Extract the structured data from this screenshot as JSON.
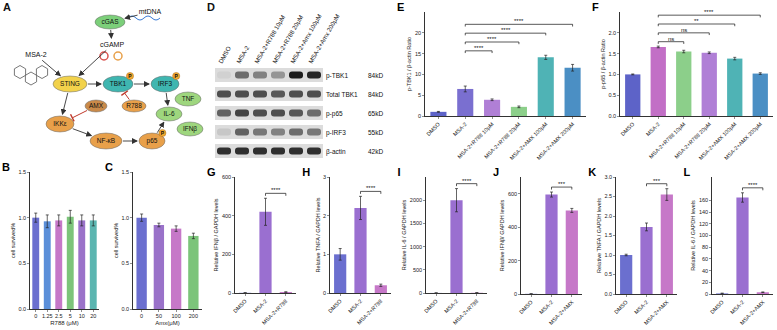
{
  "chart_data": [
    {
      "panel": "B",
      "type": "bar",
      "categories": [
        "0",
        "1.25",
        "2.5",
        "5",
        "10",
        "20"
      ],
      "values": [
        1.0,
        0.96,
        0.97,
        1.01,
        0.97,
        0.97
      ],
      "errors": [
        0.05,
        0.07,
        0.06,
        0.07,
        0.06,
        0.06
      ],
      "colors": [
        "#6b6fcf",
        "#5b8fd9",
        "#c678c8",
        "#7cc47a",
        "#9a72c9",
        "#5bb5b0"
      ],
      "xlabel": "R788 (μM)",
      "ylabel": "cell survived%",
      "ylim": [
        0,
        1.5
      ],
      "yticks": [
        {
          "value": 0,
          "label": "0.0"
        },
        {
          "value": 0.5,
          "label": "0.5"
        },
        {
          "value": 1,
          "label": "1.0"
        },
        {
          "value": 1.5,
          "label": "1.5"
        }
      ],
      "grid": false
    },
    {
      "panel": "C",
      "type": "bar",
      "categories": [
        "0",
        "50",
        "100",
        "200"
      ],
      "values": [
        1.0,
        0.92,
        0.88,
        0.8
      ],
      "errors": [
        0.04,
        0.02,
        0.03,
        0.03
      ],
      "colors": [
        "#6b6fcf",
        "#9a72c9",
        "#c678c8",
        "#7cc47a"
      ],
      "xlabel": "Amx(μM)",
      "ylabel": "cell survived%",
      "ylim": [
        0,
        1.5
      ],
      "yticks": [
        {
          "value": 0,
          "label": "0.0"
        },
        {
          "value": 0.5,
          "label": "0.5"
        },
        {
          "value": 1,
          "label": "1.0"
        },
        {
          "value": 1.5,
          "label": "1.5"
        }
      ],
      "grid": false
    },
    {
      "panel": "E",
      "type": "bar",
      "categories": [
        "DMSO",
        "MSA-2",
        "MSA-2+R788 10μM",
        "MSA-2+R788 20μM",
        "MSA-2+AMX 100μM",
        "MSA-2+AMX 200μM"
      ],
      "values": [
        1,
        6.5,
        3.9,
        2.2,
        14.1,
        11.6
      ],
      "errors": [
        0.1,
        0.7,
        0.2,
        0.2,
        0.5,
        0.8
      ],
      "colors": [
        "#5d63c8",
        "#7a6fd0",
        "#b07fd6",
        "#8ccf8a",
        "#4fb3b5",
        "#4b8fc4"
      ],
      "ylabel": "p-TBK1 / β-actin Ratio",
      "ylim": [
        0,
        25
      ],
      "yticks": [
        0,
        5,
        10,
        15,
        20
      ],
      "grid": false,
      "brackets": [
        {
          "from": "MSA-2",
          "to": "MSA-2+R788 10μM",
          "label": "****"
        },
        {
          "from": "MSA-2",
          "to": "MSA-2+R788 20μM",
          "label": "****"
        },
        {
          "from": "MSA-2",
          "to": "MSA-2+AMX 100μM",
          "label": "****"
        },
        {
          "from": "MSA-2",
          "to": "MSA-2+AMX 200μM",
          "label": "****"
        }
      ]
    },
    {
      "panel": "F",
      "type": "bar",
      "categories": [
        "DMSO",
        "MSA-2",
        "MSA-2+R788 10μM",
        "MSA-2+R788 20μM",
        "MSA-2+AMX 100μM",
        "MSA-2+AMX 200μM"
      ],
      "values": [
        1,
        1.66,
        1.55,
        1.52,
        1.38,
        1.02
      ],
      "errors": [
        0.01,
        0.02,
        0.03,
        0.02,
        0.03,
        0.02
      ],
      "colors": [
        "#5d63c8",
        "#c26fc6",
        "#8ccf8a",
        "#b07fd6",
        "#4fb3b5",
        "#4b8fc4"
      ],
      "ylabel": "p-p65 / β-actin Ratio",
      "ylim": [
        0,
        2.5
      ],
      "yticks": [
        {
          "value": 0,
          "label": "0.0"
        },
        {
          "value": 0.5,
          "label": "0.5"
        },
        {
          "value": 1,
          "label": "1.0"
        },
        {
          "value": 1.5,
          "label": "1.5"
        },
        {
          "value": 2,
          "label": "2.0"
        }
      ],
      "grid": false,
      "brackets": [
        {
          "from": "MSA-2",
          "to": "MSA-2+R788 10μM",
          "label": "ns"
        },
        {
          "from": "MSA-2",
          "to": "MSA-2+R788 20μM",
          "label": "ns"
        },
        {
          "from": "MSA-2",
          "to": "MSA-2+AMX 100μM",
          "label": "**"
        },
        {
          "from": "MSA-2",
          "to": "MSA-2+AMX 200μM",
          "label": "****"
        }
      ]
    },
    {
      "panel": "G",
      "type": "bar",
      "categories": [
        "DMSO",
        "MSA-2",
        "MSA-2+R788"
      ],
      "values": [
        1,
        420,
        5
      ],
      "errors": [
        0.5,
        70,
        1
      ],
      "colors": [
        "#6b6fcf",
        "#9a6fd0",
        "#c678c8"
      ],
      "ylabel": "Relative IFNβ / GAPDH levels",
      "ylim": [
        0,
        600
      ],
      "yticks": [
        0,
        200,
        400,
        600
      ],
      "grid": false,
      "brackets": [
        {
          "from": "MSA-2",
          "to": "MSA-2+R788",
          "label": "****"
        }
      ]
    },
    {
      "panel": "H",
      "type": "bar",
      "categories": [
        "DMSO",
        "MSA-2",
        "MSA-2+R788"
      ],
      "values": [
        1,
        2.2,
        0.2
      ],
      "errors": [
        0.15,
        0.3,
        0.03
      ],
      "colors": [
        "#6b6fcf",
        "#9a6fd0",
        "#c678c8"
      ],
      "ylabel": "Relative TNFA / GAPDH levels",
      "ylim": [
        0,
        3
      ],
      "yticks": [
        0,
        1,
        2,
        3
      ],
      "grid": false,
      "brackets": [
        {
          "from": "MSA-2",
          "to": "MSA-2+R788",
          "label": "****"
        }
      ]
    },
    {
      "panel": "I",
      "type": "bar",
      "categories": [
        "DMSO",
        "MSA-2",
        "MSA-2+R788"
      ],
      "values": [
        1.5,
        2000,
        5
      ],
      "errors": [
        0.8,
        250,
        1
      ],
      "colors": [
        "#6b6fcf",
        "#9a6fd0",
        "#c678c8"
      ],
      "ylabel": "Relative IL-6 / GAPDH levels",
      "ylim": [
        0,
        2500
      ],
      "yticks": [
        0,
        500,
        1000,
        1500,
        2000
      ],
      "grid": false,
      "brackets": [
        {
          "from": "MSA-2",
          "to": "MSA-2+R788",
          "label": "****"
        }
      ]
    },
    {
      "panel": "J",
      "type": "bar",
      "categories": [
        "DMSO",
        "MSA-2",
        "MSA-2+AMX"
      ],
      "values": [
        1,
        595,
        500
      ],
      "errors": [
        0.5,
        15,
        12
      ],
      "colors": [
        "#6b6fcf",
        "#9a6fd0",
        "#c678c8"
      ],
      "ylabel": "Relative IFNβ/ GAPDH levels",
      "ylim": [
        0,
        700
      ],
      "yticks": [
        0,
        200,
        400,
        600
      ],
      "grid": false,
      "brackets": [
        {
          "from": "MSA-2",
          "to": "MSA-2+AMX",
          "label": "***"
        }
      ]
    },
    {
      "panel": "K",
      "type": "bar",
      "categories": [
        "DMSO",
        "MSA-2",
        "MSA-2+AMX"
      ],
      "values": [
        1.0,
        1.72,
        2.55
      ],
      "errors": [
        0.02,
        0.1,
        0.15
      ],
      "colors": [
        "#6b6fcf",
        "#9a6fd0",
        "#c678c8"
      ],
      "ylabel": "Relative TNFA / GAPDH levels",
      "ylim": [
        0,
        3
      ],
      "yticks": [
        {
          "value": 0,
          "label": "0.0"
        },
        {
          "value": 0.5,
          "label": "0.5"
        },
        {
          "value": 1,
          "label": "1.0"
        },
        {
          "value": 1.5,
          "label": "1.5"
        },
        {
          "value": 2,
          "label": "2.0"
        },
        {
          "value": 2.5,
          "label": "2.5"
        },
        {
          "value": 3,
          "label": "3.0"
        }
      ],
      "grid": false,
      "brackets": [
        {
          "from": "MSA-2",
          "to": "MSA-2+AMX",
          "label": "***"
        }
      ]
    },
    {
      "panel": "L",
      "type": "bar",
      "categories": [
        "DMSO",
        "MSA-2",
        "MSA-2+AMX"
      ],
      "values": [
        1,
        165,
        3
      ],
      "errors": [
        0.5,
        8,
        0.5
      ],
      "colors": [
        "#6b6fcf",
        "#9a6fd0",
        "#c678c8"
      ],
      "ylabel": "Relative IL-6 / GAPDH levels",
      "ylim": [
        0,
        200
      ],
      "yticks": [
        0,
        20,
        40,
        60,
        80,
        100,
        120,
        140,
        160
      ],
      "grid": false,
      "brackets": [
        {
          "from": "MSA-2",
          "to": "MSA-2+AMX",
          "label": "****"
        }
      ]
    }
  ],
  "diagram": {
    "panel": "A",
    "phospho_label": "P",
    "nodes": [
      {
        "label": "mtDNA",
        "shape": "text"
      },
      {
        "label": "cGAS",
        "shape": "ellipse",
        "color": "#7ccf7a"
      },
      {
        "label": "cGAMP",
        "shape": "text"
      },
      {
        "label": "MSA-2",
        "shape": "text"
      },
      {
        "label": "STING",
        "shape": "ellipse",
        "color": "#f2d24b"
      },
      {
        "label": "TBK1",
        "shape": "ellipse",
        "color": "#3fb6b0",
        "phospho": true
      },
      {
        "label": "IRF3",
        "shape": "ellipse",
        "color": "#3fb6b0",
        "phospho": true
      },
      {
        "label": "IKKε",
        "shape": "ellipse",
        "color": "#e8a04a"
      },
      {
        "label": "NF-κB",
        "shape": "ellipse",
        "color": "#e8a04a"
      },
      {
        "label": "p65",
        "shape": "ellipse",
        "color": "#e8a04a",
        "phospho": true
      },
      {
        "label": "AMX",
        "shape": "ellipse",
        "color": "#c98a4a"
      },
      {
        "label": "R788",
        "shape": "ellipse",
        "color": "#e8a04a"
      },
      {
        "label": "TNF",
        "shape": "ellipse",
        "color": "#9ed67e"
      },
      {
        "label": "IL-6",
        "shape": "ellipse",
        "color": "#9ed67e"
      },
      {
        "label": "IFNβ",
        "shape": "ellipse",
        "color": "#9ed67e"
      }
    ],
    "edges": [
      {
        "from": 0,
        "to": 1,
        "kind": "arrow"
      },
      {
        "from": 1,
        "to": 2,
        "kind": "arrow"
      },
      {
        "from": 2,
        "to": 4,
        "kind": "arrow"
      },
      {
        "from": 3,
        "to": 4,
        "kind": "arrow"
      },
      {
        "from": 4,
        "to": 5,
        "kind": "arrow"
      },
      {
        "from": 5,
        "to": 6,
        "kind": "arrow"
      },
      {
        "from": 6,
        "to": 13,
        "kind": "arrow"
      },
      {
        "from": 4,
        "to": 7,
        "kind": "arrow"
      },
      {
        "from": 7,
        "to": 8,
        "kind": "arrow"
      },
      {
        "from": 8,
        "to": 9,
        "kind": "arrow"
      },
      {
        "from": 9,
        "to": 13,
        "kind": "arrow"
      },
      {
        "from": 11,
        "to": 5,
        "kind": "inhibit"
      },
      {
        "from": 10,
        "to": 7,
        "kind": "inhibit"
      }
    ]
  },
  "blot": {
    "panel": "D",
    "lanes": [
      "DMSO",
      "MSA-2",
      "MSA-2+R788 10μM",
      "MSA-2+R788 20μM",
      "MSA-2+Amx 100μM",
      "MSA-2+Amx 200μM"
    ],
    "rows": [
      {
        "label": "p-TBK1",
        "size": "84kD",
        "intensity": [
          0.05,
          0.55,
          0.45,
          0.35,
          0.95,
          0.9
        ]
      },
      {
        "label": "Total TBK1",
        "size": "84kD",
        "intensity": [
          0.7,
          0.7,
          0.7,
          0.65,
          0.7,
          0.7
        ]
      },
      {
        "label": "p-p65",
        "size": "65kD",
        "intensity": [
          0.6,
          0.75,
          0.7,
          0.7,
          0.65,
          0.55
        ]
      },
      {
        "label": "p-IRF3",
        "size": "55kD",
        "intensity": [
          0.1,
          0.6,
          0.5,
          0.45,
          0.55,
          0.5
        ]
      },
      {
        "label": "β-actin",
        "size": "42kD",
        "intensity": [
          0.85,
          0.85,
          0.85,
          0.85,
          0.85,
          0.85
        ]
      }
    ]
  }
}
